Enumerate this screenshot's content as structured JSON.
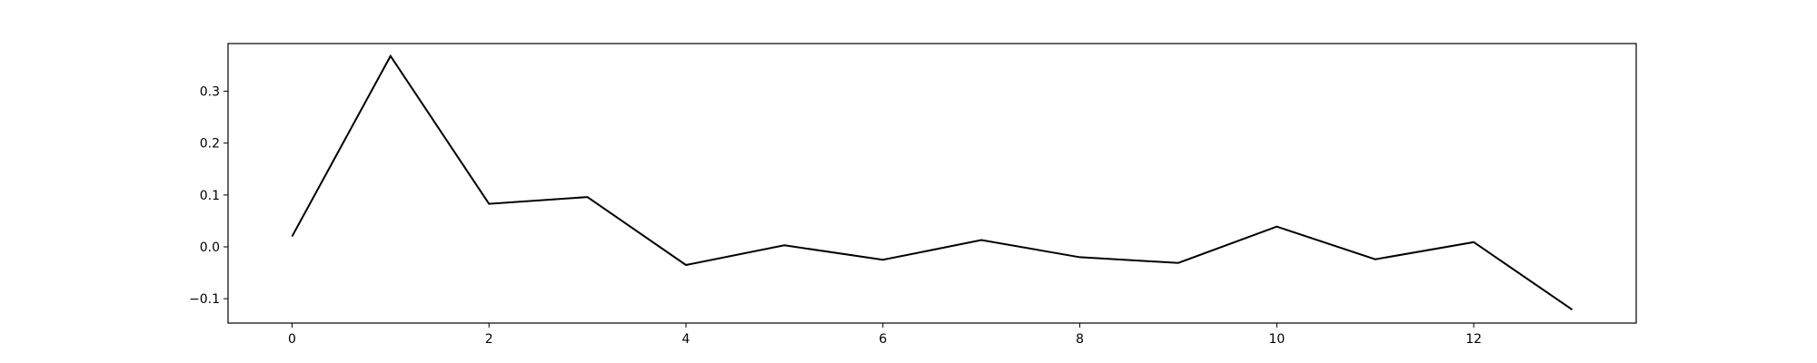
{
  "chart_data": {
    "type": "line",
    "title": "",
    "xlabel": "",
    "ylabel": "",
    "xlim": [
      -0.65,
      13.65
    ],
    "ylim": [
      -0.147,
      0.392
    ],
    "x_ticks": [
      0,
      2,
      4,
      6,
      8,
      10,
      12
    ],
    "y_ticks": [
      -0.1,
      0.0,
      0.1,
      0.2,
      0.3
    ],
    "x_tick_labels": [
      "0",
      "2",
      "4",
      "6",
      "8",
      "10",
      "12"
    ],
    "y_tick_labels": [
      "−0.1",
      "0.0",
      "0.1",
      "0.2",
      "0.3"
    ],
    "grid": false,
    "series": [
      {
        "color": "#000000",
        "x": [
          0,
          1,
          2,
          3,
          4,
          5,
          6,
          7,
          8,
          9,
          10,
          11,
          12,
          13
        ],
        "values": [
          0.02,
          0.368,
          0.083,
          0.096,
          -0.035,
          0.003,
          -0.025,
          0.013,
          -0.02,
          -0.031,
          0.039,
          -0.024,
          0.009,
          -0.121
        ]
      }
    ]
  }
}
